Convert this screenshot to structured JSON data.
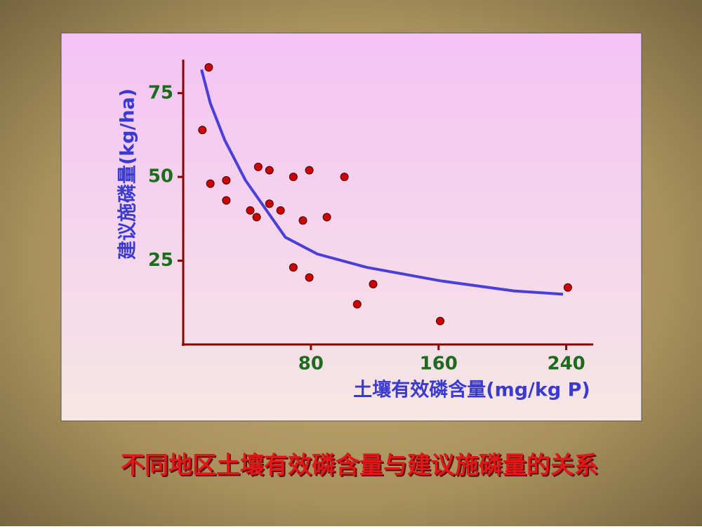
{
  "chart_data": {
    "type": "scatter",
    "title": "不同地区土壤有效磷含量与建议施磷量的关系",
    "x_label": "土壤有效磷含量(mg/kg P)",
    "y_label": "建议施磷量(kg/ha)",
    "x": [
      16,
      12,
      17,
      27,
      27,
      42,
      46,
      47,
      54,
      54,
      61,
      69,
      79,
      75,
      101,
      90,
      69,
      79,
      119,
      109,
      161,
      241
    ],
    "values": [
      82.7,
      64,
      48,
      49,
      43,
      40,
      38,
      53,
      52,
      42,
      40,
      50,
      52,
      37,
      50,
      38,
      23,
      20,
      18,
      12,
      7,
      17
    ],
    "color": "#cc0000",
    "curve": {
      "x": [
        11.5,
        17,
        26,
        39,
        64,
        84,
        115,
        161,
        207,
        238
      ],
      "values": [
        82,
        72,
        61,
        49,
        32,
        27,
        23,
        19,
        16,
        15
      ],
      "color": "#4a3fd6"
    },
    "xlim": [
      0,
      256
    ],
    "ylim": [
      0,
      85
    ],
    "xticks": [
      80,
      160,
      240
    ],
    "yticks": [
      25,
      50,
      75
    ]
  }
}
